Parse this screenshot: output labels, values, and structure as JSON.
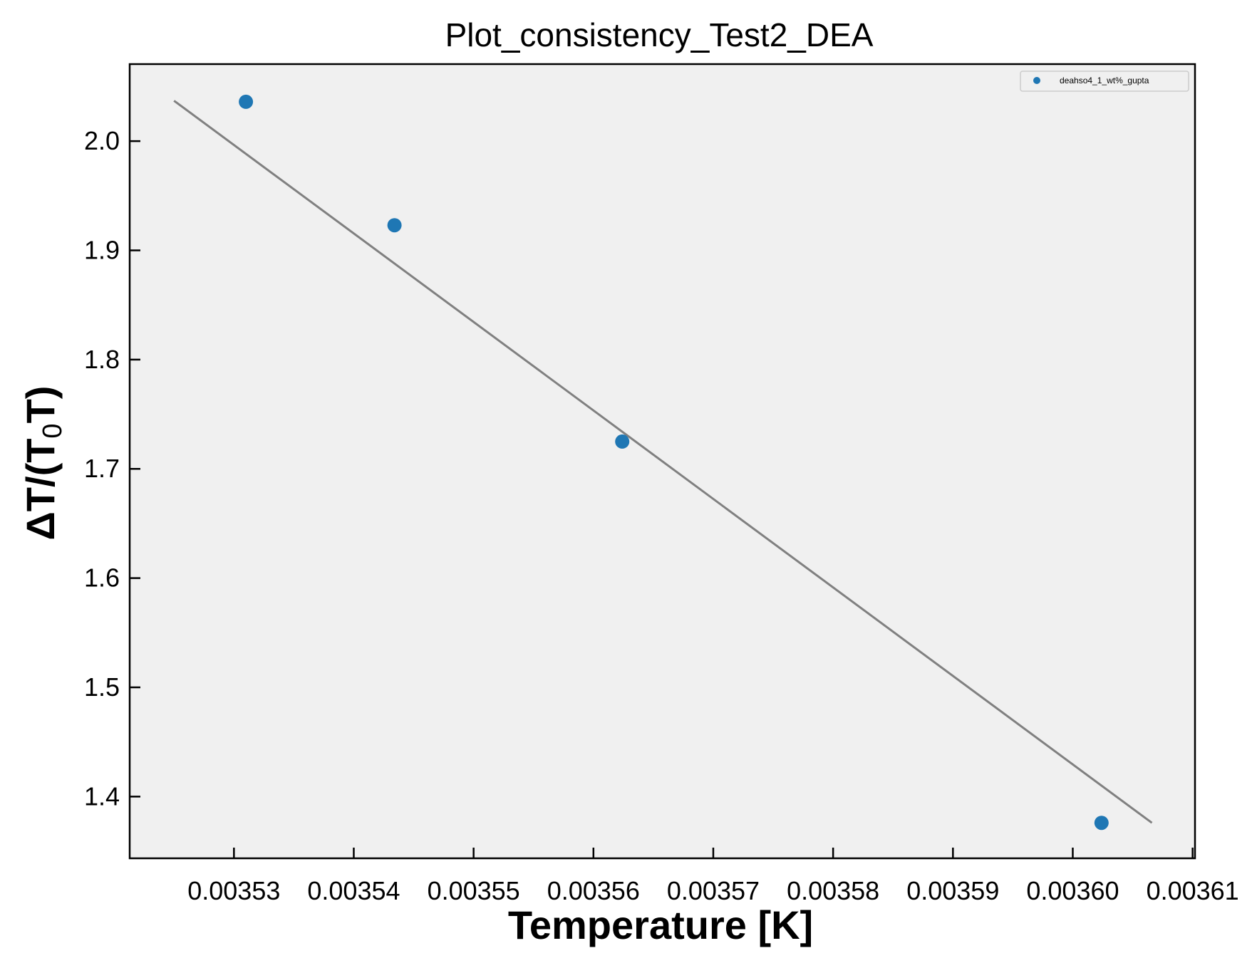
{
  "chart_data": {
    "type": "scatter",
    "title": "Plot_consistency_Test2_DEA",
    "xlabel": "Temperature [K]",
    "ylabel": {
      "prefix": "ΔT/(T",
      "subscript": "0",
      "suffix": "T)"
    },
    "xlim": [
      0.0035213,
      0.0036102
    ],
    "ylim": [
      1.3435,
      2.0705
    ],
    "x_ticks": [
      0.00353,
      0.00354,
      0.00355,
      0.00356,
      0.00357,
      0.00358,
      0.00359,
      0.0036,
      0.00361
    ],
    "x_tick_labels": [
      "0.00353",
      "0.00354",
      "0.00355",
      "0.00356",
      "0.00357",
      "0.00358",
      "0.00359",
      "0.00360",
      "0.00361"
    ],
    "y_ticks": [
      1.4,
      1.5,
      1.6,
      1.7,
      1.8,
      1.9,
      2.0
    ],
    "y_tick_labels": [
      "1.4",
      "1.5",
      "1.6",
      "1.7",
      "1.8",
      "1.9",
      "2.0"
    ],
    "grid": false,
    "legend_position": "top-right",
    "series": [
      {
        "name": "deahso4_1_wt%_gupta",
        "kind": "scatter",
        "color": "#1f77b4",
        "x": [
          0.003531,
          0.0035434,
          0.0035624,
          0.0036024
        ],
        "y": [
          2.036,
          1.923,
          1.725,
          1.376
        ]
      },
      {
        "kind": "line",
        "color": "#808080",
        "x": [
          0.003525,
          0.0036066
        ],
        "y": [
          2.037,
          1.376
        ]
      }
    ],
    "colors": {
      "plot_background": "#f0f0f0",
      "axes": "#000000"
    }
  }
}
